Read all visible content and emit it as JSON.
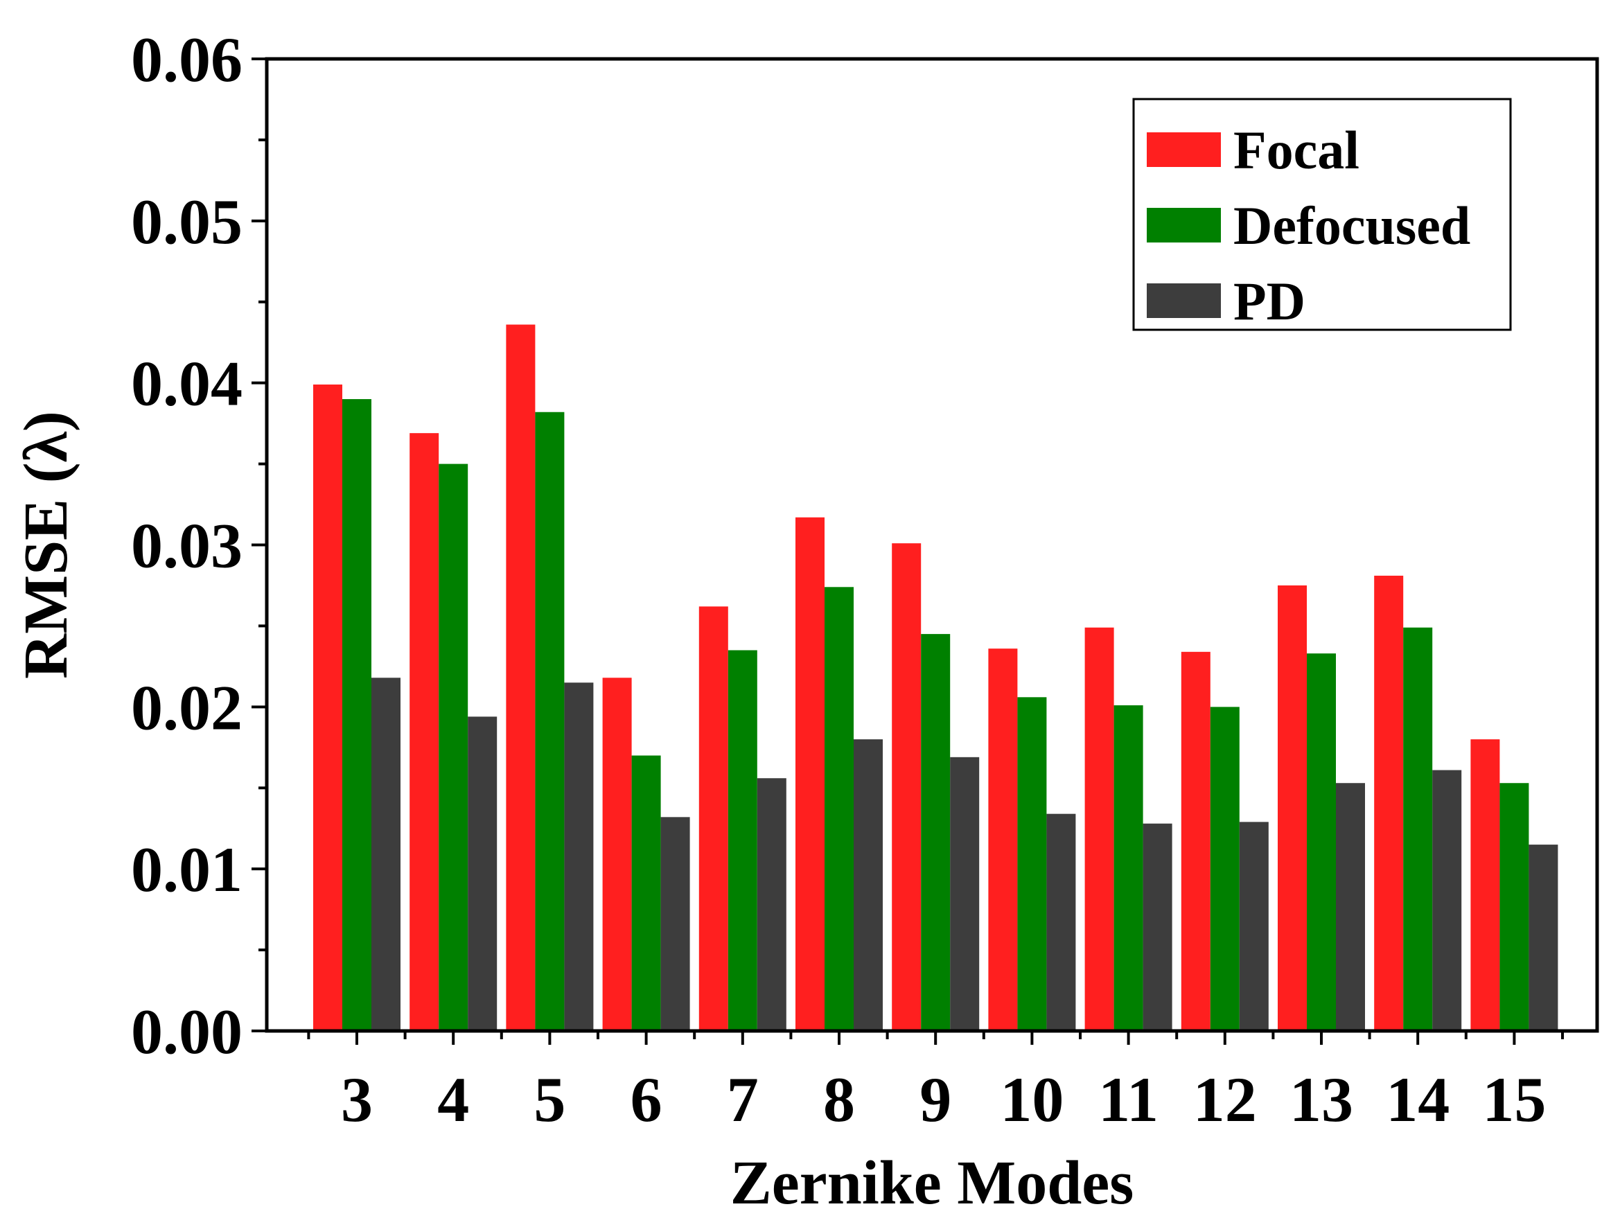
{
  "chart_data": {
    "type": "bar",
    "title": "",
    "xlabel": "Zernike Modes",
    "ylabel": "RMSE (λ)",
    "categories": [
      "3",
      "4",
      "5",
      "6",
      "7",
      "8",
      "9",
      "10",
      "11",
      "12",
      "13",
      "14",
      "15"
    ],
    "series": [
      {
        "name": "Focal",
        "color": "#ff1f1f",
        "values": [
          0.0399,
          0.0369,
          0.0436,
          0.0218,
          0.0262,
          0.0317,
          0.0301,
          0.0236,
          0.0249,
          0.0234,
          0.0275,
          0.0281,
          0.018
        ]
      },
      {
        "name": "Defocused",
        "color": "#008000",
        "values": [
          0.039,
          0.035,
          0.0382,
          0.017,
          0.0235,
          0.0274,
          0.0245,
          0.0206,
          0.0201,
          0.02,
          0.0233,
          0.0249,
          0.0153
        ]
      },
      {
        "name": "PD",
        "color": "#3d3d3d",
        "values": [
          0.0218,
          0.0194,
          0.0215,
          0.0132,
          0.0156,
          0.018,
          0.0169,
          0.0134,
          0.0128,
          0.0129,
          0.0153,
          0.0161,
          0.0115
        ]
      }
    ],
    "yticks": [
      "0.00",
      "0.01",
      "0.02",
      "0.03",
      "0.04",
      "0.05",
      "0.06"
    ],
    "ylim": [
      0,
      0.06
    ],
    "legend_position": "top-right",
    "grid": false
  }
}
